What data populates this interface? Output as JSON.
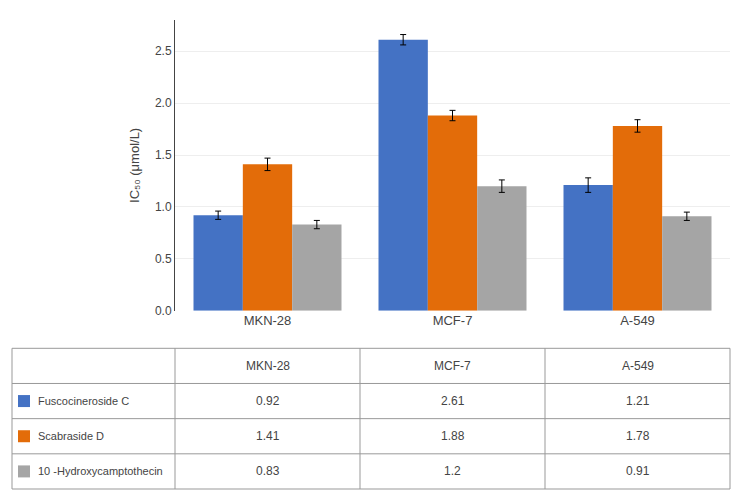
{
  "chart_data": {
    "type": "bar",
    "categories": [
      "MKN-28",
      "MCF-7",
      "A-549"
    ],
    "series": [
      {
        "name": "Fuscocineroside C",
        "color": "#4472C4",
        "values": [
          0.92,
          2.61,
          1.21
        ],
        "errors": [
          0.04,
          0.05,
          0.07
        ]
      },
      {
        "name": "Scabraside D",
        "color": "#E36C09",
        "values": [
          1.41,
          1.88,
          1.78
        ],
        "errors": [
          0.06,
          0.05,
          0.06
        ]
      },
      {
        "name": "10 -Hydroxycamptothecin",
        "color": "#A5A5A5",
        "values": [
          0.83,
          1.2,
          0.91
        ],
        "errors": [
          0.04,
          0.06,
          0.04
        ]
      }
    ],
    "ylabel": "IC₅₀ (μmol/L)",
    "ylim": [
      0,
      2.8
    ],
    "yticks": [
      {
        "value": 0,
        "label": "0.0"
      },
      0.5,
      {
        "value": 1.0,
        "label": "1.0"
      },
      1.5,
      {
        "value": 2.0,
        "label": "2.0"
      },
      2.5
    ],
    "grid": true,
    "table_rows": [
      [
        "Fuscocineroside C",
        "0.92",
        "2.61",
        "1.21"
      ],
      [
        "Scabraside D",
        "1.41",
        "1.88",
        "1.78"
      ],
      [
        "10 -Hydroxycamptothecin",
        "0.83",
        "1.2",
        "0.91"
      ]
    ]
  }
}
